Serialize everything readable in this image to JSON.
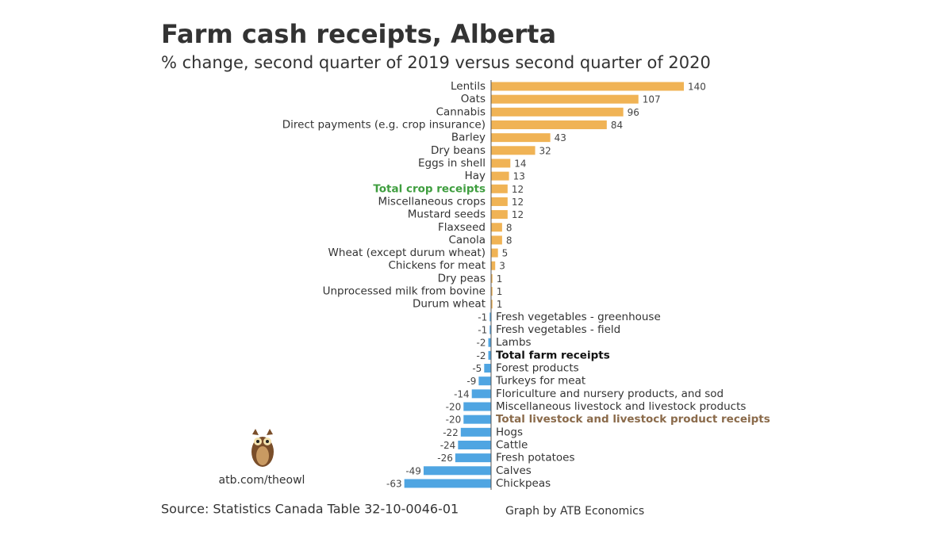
{
  "chart_data": {
    "type": "bar",
    "orientation": "horizontal",
    "title": "Farm cash receipts, Alberta",
    "subtitle": "% change, second quarter of 2019 versus second quarter of 2020",
    "categories": [
      "Lentils",
      "Oats",
      "Cannabis",
      "Direct payments (e.g. crop insurance)",
      "Barley",
      "Dry beans",
      "Eggs in shell",
      "Hay",
      "Total crop receipts",
      "Miscellaneous crops",
      "Mustard seeds",
      "Flaxseed",
      "Canola",
      "Wheat (except durum wheat)",
      "Chickens for meat",
      "Dry peas",
      "Unprocessed milk from bovine",
      "Durum wheat",
      "Fresh vegetables - greenhouse",
      "Fresh vegetables - field",
      "Lambs",
      "Total farm receipts",
      "Forest products",
      "Turkeys for meat",
      "Floriculture and nursery products, and sod",
      "Miscellaneous livestock and livestock products",
      "Total livestock and livestock product receipts",
      "Hogs",
      "Cattle",
      "Fresh potatoes",
      "Calves",
      "Chickpeas"
    ],
    "values": [
      140,
      107,
      96,
      84,
      43,
      32,
      14,
      13,
      12,
      12,
      12,
      8,
      8,
      5,
      3,
      1,
      1,
      1,
      -1,
      -1,
      -2,
      -2,
      -5,
      -9,
      -14,
      -20,
      -20,
      -22,
      -24,
      -26,
      -49,
      -63
    ],
    "positive_color": "#f0b355",
    "negative_color": "#4fa5e2",
    "emphasized": [
      {
        "index": 8,
        "color": "#3f9e3f"
      },
      {
        "index": 21,
        "color": "#111111"
      },
      {
        "index": 26,
        "color": "#8a6a4a"
      }
    ],
    "website": "atb.com/theowl",
    "source": "Source: Statistics Canada Table 32-10-0046-01",
    "credit": "Graph by ATB Economics"
  }
}
